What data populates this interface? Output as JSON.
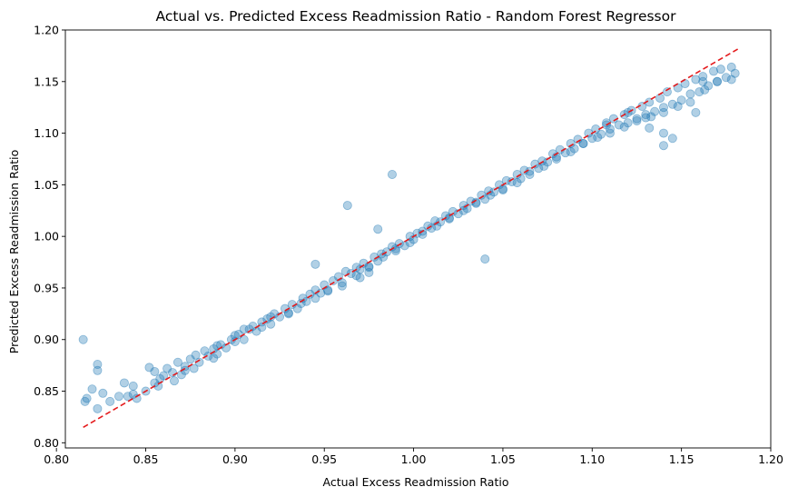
{
  "chart_data": {
    "type": "scatter",
    "title": "Actual vs. Predicted Excess Readmission Ratio - Random Forest Regressor",
    "xlabel": "Actual Excess Readmission Ratio",
    "ylabel": "Predicted Excess Readmission Ratio",
    "xlim": [
      0.805,
      1.2
    ],
    "ylim": [
      0.795,
      1.2
    ],
    "xticks": [
      "0.80",
      "0.85",
      "0.90",
      "0.95",
      "1.00",
      "1.05",
      "1.10",
      "1.15",
      "1.20"
    ],
    "yticks": [
      "0.80",
      "0.85",
      "0.90",
      "0.95",
      "1.00",
      "1.05",
      "1.10",
      "1.15",
      "1.20"
    ],
    "grid": false,
    "point_color": "#1f77b4",
    "point_alpha": 0.35,
    "reference_line": {
      "from": [
        0.815,
        0.815
      ],
      "to": [
        1.183,
        1.183
      ],
      "color": "#e41a1c",
      "style": "dashed"
    },
    "x": [
      0.815,
      0.816,
      0.817,
      0.82,
      0.823,
      0.823,
      0.823,
      0.826,
      0.83,
      0.835,
      0.838,
      0.84,
      0.843,
      0.845,
      0.85,
      0.852,
      0.855,
      0.857,
      0.86,
      0.862,
      0.865,
      0.868,
      0.87,
      0.872,
      0.875,
      0.878,
      0.88,
      0.883,
      0.885,
      0.888,
      0.89,
      0.892,
      0.895,
      0.898,
      0.9,
      0.902,
      0.905,
      0.908,
      0.91,
      0.912,
      0.915,
      0.918,
      0.92,
      0.922,
      0.925,
      0.928,
      0.93,
      0.932,
      0.935,
      0.938,
      0.94,
      0.942,
      0.945,
      0.948,
      0.95,
      0.952,
      0.955,
      0.958,
      0.96,
      0.962,
      0.965,
      0.968,
      0.97,
      0.972,
      0.975,
      0.978,
      0.98,
      0.982,
      0.985,
      0.988,
      0.99,
      0.992,
      0.995,
      0.998,
      1.0,
      1.002,
      1.005,
      1.008,
      1.01,
      1.012,
      1.015,
      1.018,
      1.02,
      1.022,
      1.025,
      1.028,
      1.03,
      1.032,
      1.035,
      1.038,
      1.04,
      1.042,
      1.045,
      1.048,
      1.05,
      1.052,
      1.055,
      1.058,
      1.06,
      1.062,
      1.065,
      1.068,
      1.07,
      1.072,
      1.075,
      1.078,
      1.08,
      1.082,
      1.085,
      1.088,
      1.09,
      1.092,
      1.095,
      1.098,
      1.1,
      1.102,
      1.105,
      1.108,
      1.11,
      1.112,
      1.115,
      1.118,
      1.12,
      1.122,
      1.125,
      1.128,
      1.13,
      1.132,
      1.135,
      1.138,
      1.14,
      1.142,
      1.145,
      1.148,
      1.15,
      1.152,
      1.155,
      1.158,
      1.16,
      1.162,
      1.165,
      1.168,
      1.17,
      1.172,
      1.175,
      1.178,
      1.18,
      0.843,
      0.858,
      0.872,
      0.888,
      0.9,
      0.915,
      0.93,
      0.945,
      0.96,
      0.975,
      0.99,
      1.005,
      1.02,
      1.035,
      1.05,
      1.065,
      1.08,
      1.095,
      1.11,
      1.125,
      1.14,
      1.155,
      1.17,
      0.855,
      0.866,
      0.877,
      0.89,
      0.905,
      0.92,
      0.937,
      0.952,
      0.968,
      0.983,
      0.998,
      1.013,
      1.028,
      1.043,
      1.058,
      1.073,
      1.088,
      1.103,
      1.118,
      1.133,
      1.148,
      1.163,
      1.178,
      0.945,
      0.963,
      0.988,
      0.98,
      1.04,
      1.14,
      1.13,
      1.12,
      1.14,
      1.158,
      1.162,
      1.145,
      1.132,
      1.108,
      0.97,
      0.975
    ],
    "y": [
      0.9,
      0.84,
      0.843,
      0.852,
      0.876,
      0.87,
      0.833,
      0.848,
      0.84,
      0.845,
      0.858,
      0.845,
      0.855,
      0.843,
      0.85,
      0.873,
      0.869,
      0.855,
      0.865,
      0.872,
      0.868,
      0.878,
      0.866,
      0.874,
      0.881,
      0.885,
      0.878,
      0.889,
      0.884,
      0.891,
      0.886,
      0.895,
      0.892,
      0.9,
      0.904,
      0.905,
      0.9,
      0.91,
      0.913,
      0.908,
      0.917,
      0.92,
      0.915,
      0.925,
      0.922,
      0.93,
      0.926,
      0.934,
      0.93,
      0.94,
      0.937,
      0.944,
      0.948,
      0.945,
      0.953,
      0.948,
      0.957,
      0.961,
      0.955,
      0.966,
      0.964,
      0.97,
      0.968,
      0.974,
      0.971,
      0.98,
      0.976,
      0.983,
      0.985,
      0.99,
      0.988,
      0.993,
      0.991,
      1.0,
      0.997,
      1.003,
      1.005,
      1.01,
      1.008,
      1.015,
      1.014,
      1.02,
      1.018,
      1.024,
      1.022,
      1.03,
      1.027,
      1.034,
      1.033,
      1.04,
      1.036,
      1.044,
      1.043,
      1.05,
      1.046,
      1.054,
      1.053,
      1.06,
      1.056,
      1.064,
      1.063,
      1.07,
      1.066,
      1.073,
      1.072,
      1.08,
      1.075,
      1.084,
      1.081,
      1.09,
      1.085,
      1.094,
      1.09,
      1.1,
      1.095,
      1.104,
      1.099,
      1.11,
      1.104,
      1.114,
      1.108,
      1.118,
      1.11,
      1.122,
      1.114,
      1.126,
      1.118,
      1.13,
      1.121,
      1.134,
      1.125,
      1.14,
      1.128,
      1.144,
      1.132,
      1.148,
      1.138,
      1.152,
      1.14,
      1.155,
      1.146,
      1.16,
      1.15,
      1.162,
      1.154,
      1.164,
      1.158,
      0.847,
      0.862,
      0.87,
      0.882,
      0.898,
      0.912,
      0.925,
      0.94,
      0.952,
      0.97,
      0.986,
      1.002,
      1.017,
      1.032,
      1.045,
      1.06,
      1.077,
      1.09,
      1.1,
      1.112,
      1.12,
      1.13,
      1.15,
      0.858,
      0.86,
      0.872,
      0.894,
      0.91,
      0.922,
      0.935,
      0.947,
      0.962,
      0.98,
      0.994,
      1.01,
      1.025,
      1.04,
      1.052,
      1.068,
      1.082,
      1.096,
      1.106,
      1.116,
      1.126,
      1.142,
      1.152,
      0.973,
      1.03,
      1.06,
      1.007,
      0.978,
      1.088,
      1.115,
      1.12,
      1.1,
      1.12,
      1.15,
      1.095,
      1.105,
      1.108,
      0.96,
      0.965
    ]
  }
}
